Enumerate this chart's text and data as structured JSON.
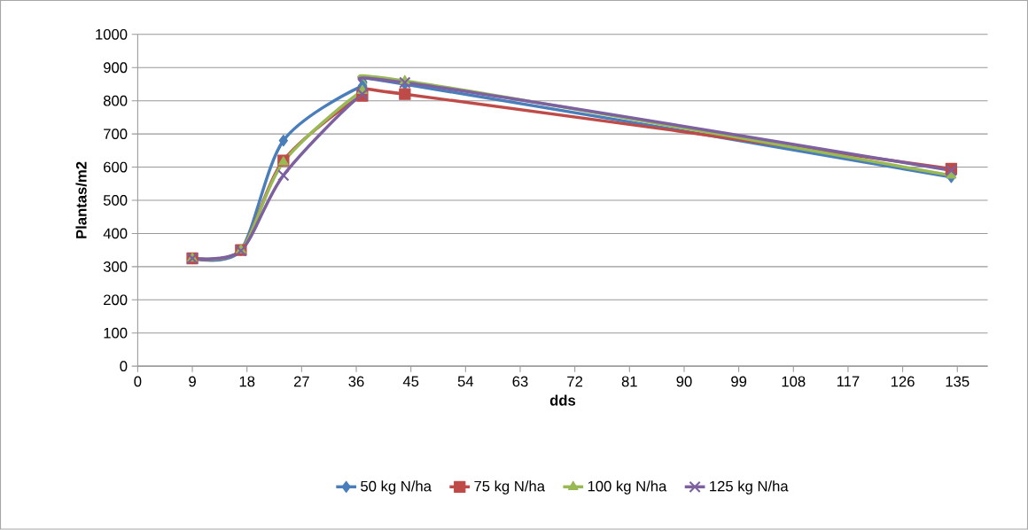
{
  "chart_data": {
    "type": "line",
    "xlabel": "dds",
    "ylabel": "Plantas/m2",
    "x": [
      9,
      17,
      24,
      37,
      44,
      134
    ],
    "series": [
      {
        "name": "50 kg N/ha",
        "color": "#4a7ebb",
        "marker": "diamond",
        "values": [
          325,
          350,
          680,
          845,
          850,
          570
        ]
      },
      {
        "name": "75 kg N/ha",
        "color": "#be4b48",
        "marker": "square",
        "values": [
          325,
          350,
          620,
          815,
          820,
          595
        ]
      },
      {
        "name": "100 kg N/ha",
        "color": "#98b954",
        "marker": "triangle",
        "values": [
          325,
          350,
          615,
          830,
          860,
          575
        ]
      },
      {
        "name": "125 kg N/ha",
        "color": "#7d60a0",
        "marker": "cross",
        "values": [
          325,
          348,
          575,
          820,
          855,
          590
        ]
      }
    ],
    "xlim": [
      0,
      140
    ],
    "ylim": [
      0,
      1000
    ],
    "xticks": [
      0,
      9,
      18,
      27,
      36,
      45,
      54,
      63,
      72,
      81,
      90,
      99,
      108,
      117,
      126,
      135
    ],
    "yticks": [
      0,
      100,
      200,
      300,
      400,
      500,
      600,
      700,
      800,
      900,
      1000
    ],
    "grid": "y",
    "legend": "bottom",
    "line_style": "solid"
  }
}
